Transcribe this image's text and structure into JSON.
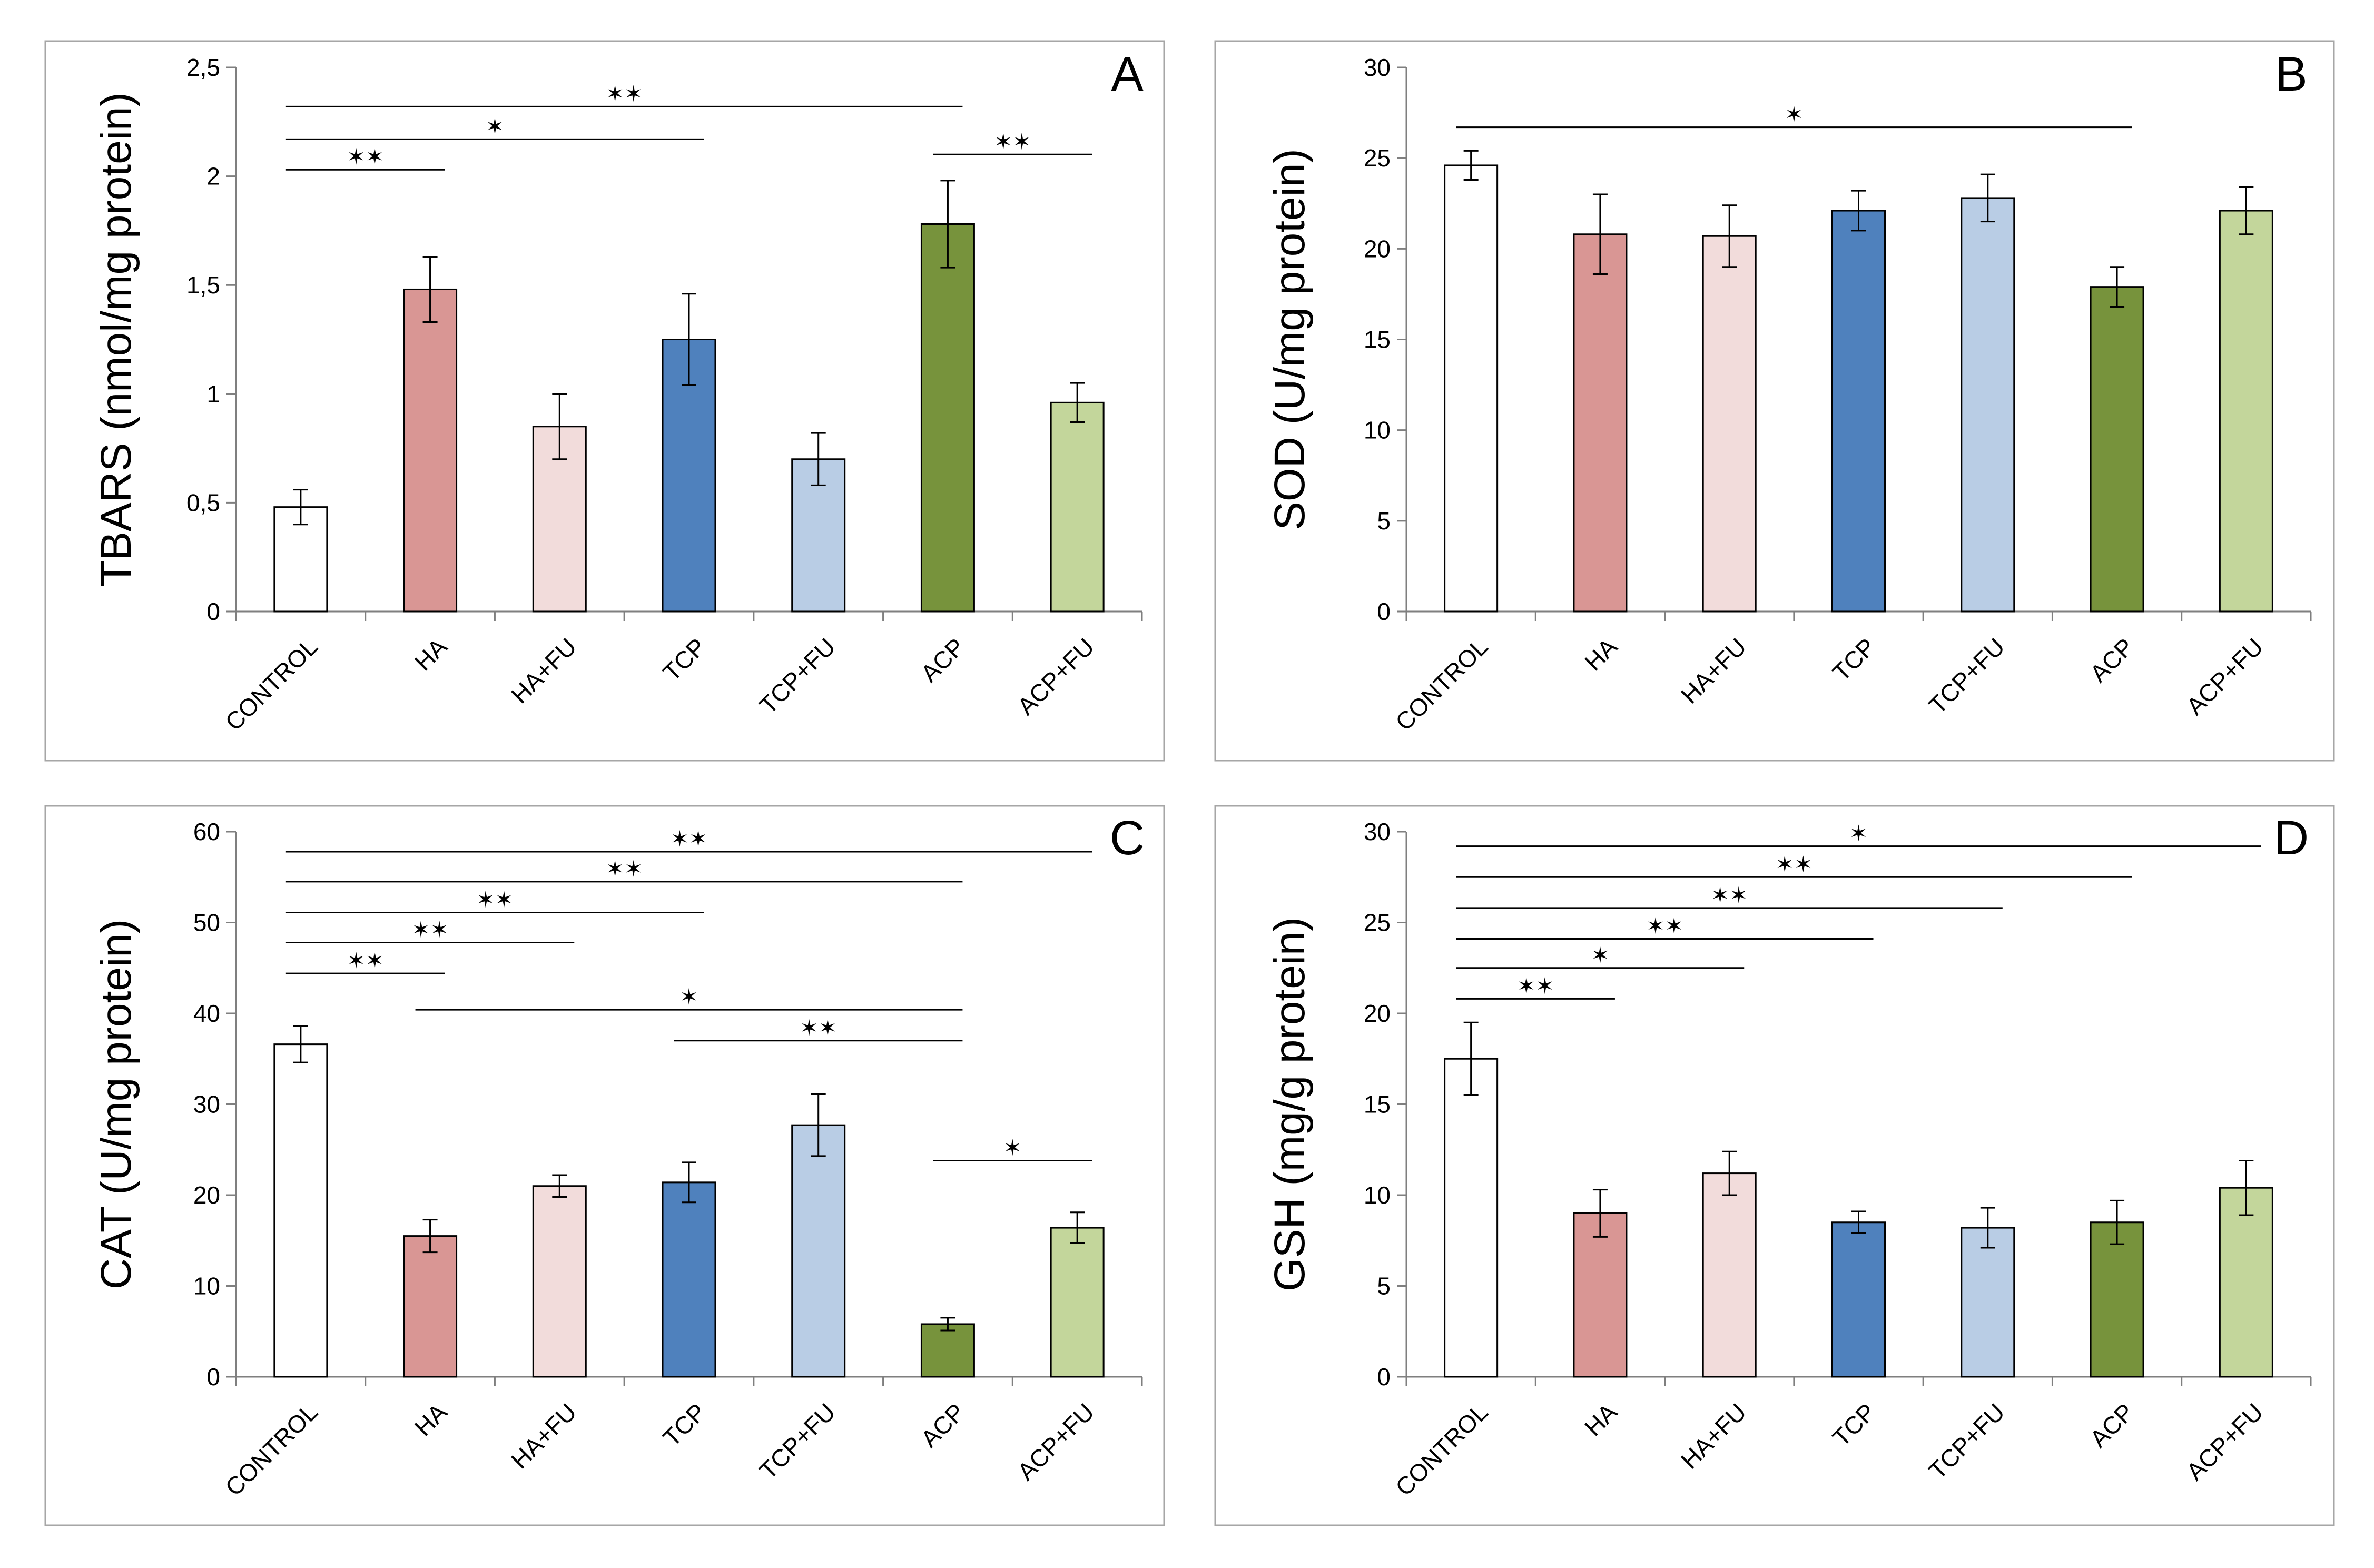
{
  "chart_data": [
    {
      "type": "bar",
      "panel_letter": "A",
      "categories": [
        "CONTROL",
        "HA",
        "HA+FU",
        "TCP",
        "TCP+FU",
        "ACP",
        "ACP+FU"
      ],
      "values": [
        0.48,
        1.48,
        0.85,
        1.25,
        0.7,
        1.78,
        0.96
      ],
      "errors": [
        0.08,
        0.15,
        0.15,
        0.21,
        0.12,
        0.2,
        0.09
      ],
      "ylabel": "TBARS (nmol/mg protein)",
      "ylim": [
        0,
        2.5
      ],
      "ytick_labels": [
        "0",
        "0,5",
        "1",
        "1,5",
        "2",
        "2,5"
      ],
      "grid": false,
      "significance": [
        {
          "from": "CONTROL",
          "to": "HA",
          "label": "✶✶",
          "level": 2.03
        },
        {
          "from": "CONTROL",
          "to": "TCP",
          "label": "✶",
          "level": 2.17
        },
        {
          "from": "CONTROL",
          "to": "ACP",
          "label": "✶✶",
          "level": 2.32
        },
        {
          "from": "ACP",
          "to": "ACP+FU",
          "label": "✶✶",
          "level": 2.1
        }
      ]
    },
    {
      "type": "bar",
      "panel_letter": "B",
      "categories": [
        "CONTROL",
        "HA",
        "HA+FU",
        "TCP",
        "TCP+FU",
        "ACP",
        "ACP+FU"
      ],
      "values": [
        24.6,
        20.8,
        20.7,
        22.1,
        22.8,
        17.9,
        22.1
      ],
      "errors": [
        0.8,
        2.2,
        1.7,
        1.1,
        1.3,
        1.1,
        1.3
      ],
      "ylabel": "SOD  (U/mg protein)",
      "ylim": [
        0,
        30
      ],
      "ytick_labels": [
        "0",
        "5",
        "10",
        "15",
        "20",
        "25",
        "30"
      ],
      "grid": false,
      "significance": [
        {
          "from": "CONTROL",
          "to": "ACP",
          "label": "✶",
          "level": 26.7
        }
      ]
    },
    {
      "type": "bar",
      "panel_letter": "C",
      "categories": [
        "CONTROL",
        "HA",
        "HA+FU",
        "TCP",
        "TCP+FU",
        "ACP",
        "ACP+FU"
      ],
      "values": [
        36.6,
        15.5,
        21.0,
        21.4,
        27.7,
        5.8,
        16.4
      ],
      "errors": [
        2.0,
        1.8,
        1.2,
        2.2,
        3.4,
        0.7,
        1.7
      ],
      "ylabel": "CAT (U/mg protein)",
      "ylim": [
        0,
        60
      ],
      "ytick_labels": [
        "0",
        "10",
        "20",
        "30",
        "40",
        "50",
        "60"
      ],
      "grid": false,
      "significance": [
        {
          "from": "CONTROL",
          "to": "HA",
          "label": "✶✶",
          "level": 44.4
        },
        {
          "from": "CONTROL",
          "to": "HA+FU",
          "label": "✶✶",
          "level": 47.8
        },
        {
          "from": "CONTROL",
          "to": "TCP",
          "label": "✶✶",
          "level": 51.1
        },
        {
          "from": "CONTROL",
          "to": "ACP",
          "label": "✶✶",
          "level": 54.5
        },
        {
          "from": "CONTROL",
          "to": "ACP+FU",
          "label": "✶✶",
          "level": 57.8
        },
        {
          "from": "HA",
          "to": "ACP",
          "label": "✶",
          "level": 40.4
        },
        {
          "from": "TCP",
          "to": "ACP",
          "label": "✶✶",
          "level": 37.0
        },
        {
          "from": "ACP",
          "to": "ACP+FU",
          "label": "✶",
          "level": 23.8
        }
      ]
    },
    {
      "type": "bar",
      "panel_letter": "D",
      "categories": [
        "CONTROL",
        "HA",
        "HA+FU",
        "TCP",
        "TCP+FU",
        "ACP",
        "ACP+FU"
      ],
      "values": [
        17.5,
        9.0,
        11.2,
        8.5,
        8.2,
        8.5,
        10.4
      ],
      "errors": [
        2.0,
        1.3,
        1.2,
        0.6,
        1.1,
        1.2,
        1.5
      ],
      "ylabel": "GSH (mg/g protein)",
      "ylim": [
        0,
        30
      ],
      "ytick_labels": [
        "0",
        "5",
        "10",
        "15",
        "20",
        "25",
        "30"
      ],
      "grid": false,
      "significance": [
        {
          "from": "CONTROL",
          "to": "HA",
          "label": "✶✶",
          "level": 20.8
        },
        {
          "from": "CONTROL",
          "to": "HA+FU",
          "label": "✶",
          "level": 22.5
        },
        {
          "from": "CONTROL",
          "to": "TCP",
          "label": "✶✶",
          "level": 24.1
        },
        {
          "from": "CONTROL",
          "to": "TCP+FU",
          "label": "✶✶",
          "level": 25.8
        },
        {
          "from": "CONTROL",
          "to": "ACP",
          "label": "✶✶",
          "level": 27.5
        },
        {
          "from": "CONTROL",
          "to": "ACP+FU",
          "label": "✶",
          "level": 29.2
        }
      ]
    }
  ],
  "colors": {
    "CONTROL": "#ffffff",
    "HA": "#d99694",
    "HA+FU": "#f2dcdb",
    "TCP": "#4f81bd",
    "TCP+FU": "#b9cde5",
    "ACP": "#77933c",
    "ACP+FU": "#c3d69b"
  }
}
